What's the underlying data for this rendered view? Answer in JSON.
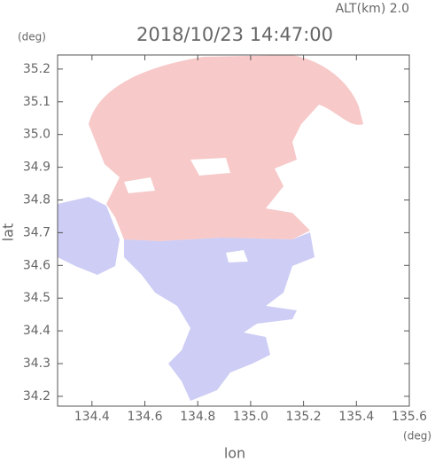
{
  "chart_data": {
    "type": "map",
    "title": "2018/10/23 14:47:00",
    "annotation": "ALT(km)  2.0",
    "y_unit": "(deg)",
    "x_unit": "(deg)",
    "xlabel": "lon",
    "ylabel": "lat",
    "xlim": [
      134.27,
      135.6
    ],
    "ylim": [
      34.17,
      35.243
    ],
    "xticks": [
      134.4,
      134.6,
      134.8,
      {
        "value": 135,
        "label": "135.0"
      },
      135.2,
      135.4,
      135.6
    ],
    "yticks": [
      34.2,
      34.3,
      34.4,
      34.5,
      34.6,
      34.7,
      34.8,
      34.9,
      {
        "value": 35,
        "label": "35.0"
      },
      35.1,
      35.2
    ]
  }
}
